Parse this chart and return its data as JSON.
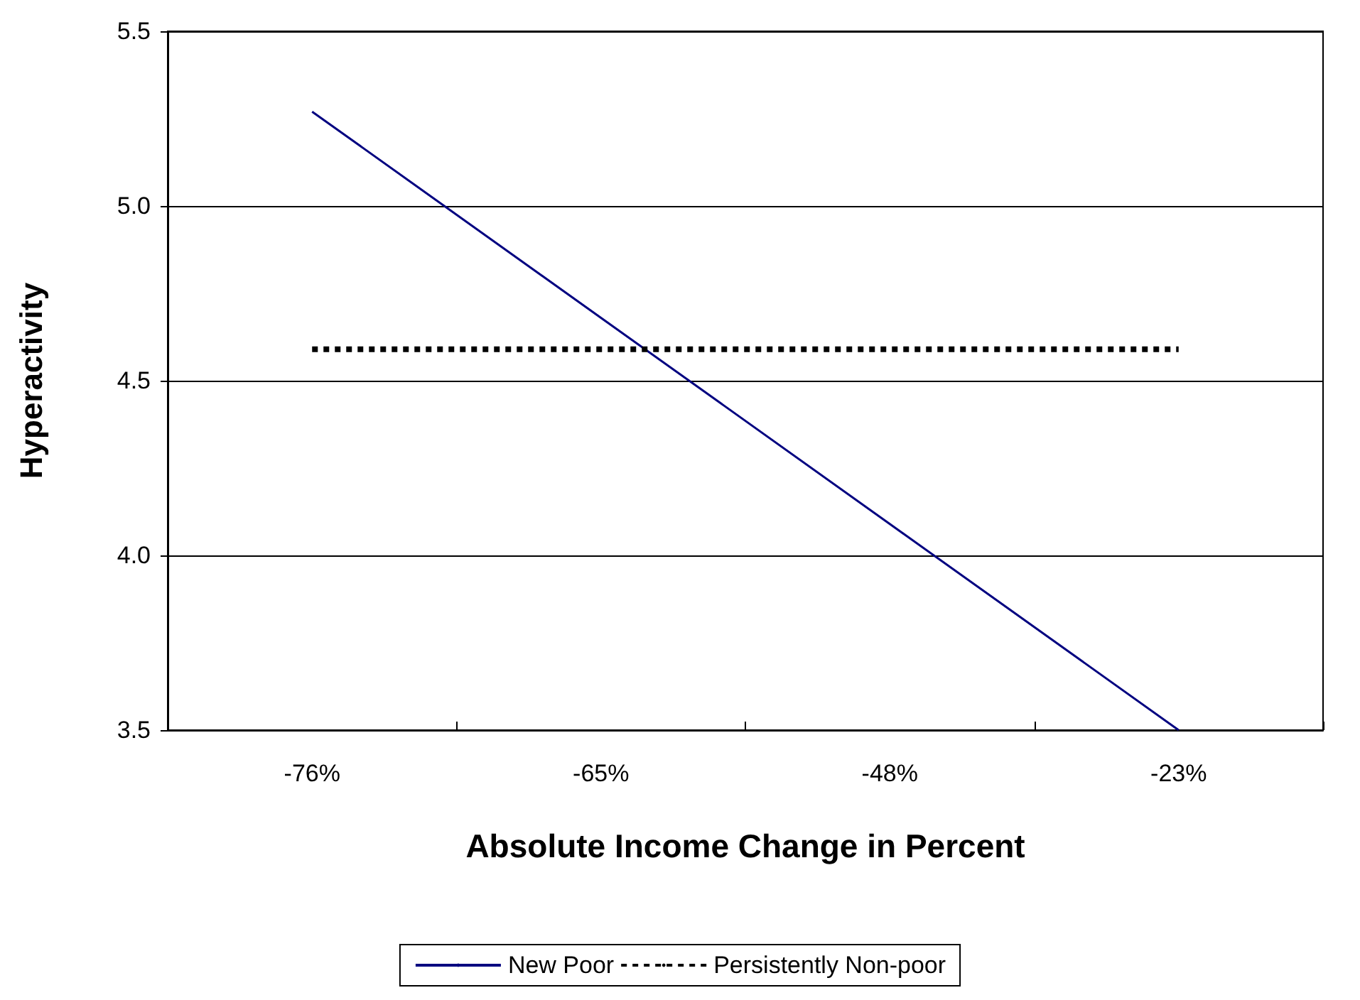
{
  "chart_data": {
    "type": "line",
    "xlabel": "Absolute Income Change in Percent",
    "ylabel": "Hyperactivity",
    "categories": [
      "-76%",
      "-65%",
      "-48%",
      "-23%"
    ],
    "series": [
      {
        "name": "New Poor",
        "color": "#000080",
        "values": [
          5.27,
          4.68,
          4.09,
          3.5
        ],
        "line_style": "solid"
      },
      {
        "name": "Persistently Non-poor",
        "color": "#000000",
        "values": [
          4.59,
          4.59,
          4.59,
          4.59
        ],
        "line_style": "dashed"
      }
    ],
    "ylim": [
      3.5,
      5.5
    ],
    "yticks": [
      {
        "value": 3.5,
        "label": "3.5"
      },
      {
        "value": 4,
        "label": "4.0"
      },
      {
        "value": 4.5,
        "label": "4.5"
      },
      {
        "value": 5,
        "label": "5.0"
      },
      {
        "value": 5.5,
        "label": "5.5"
      }
    ],
    "grid": "y",
    "legend": "bottom",
    "marker": "none"
  }
}
